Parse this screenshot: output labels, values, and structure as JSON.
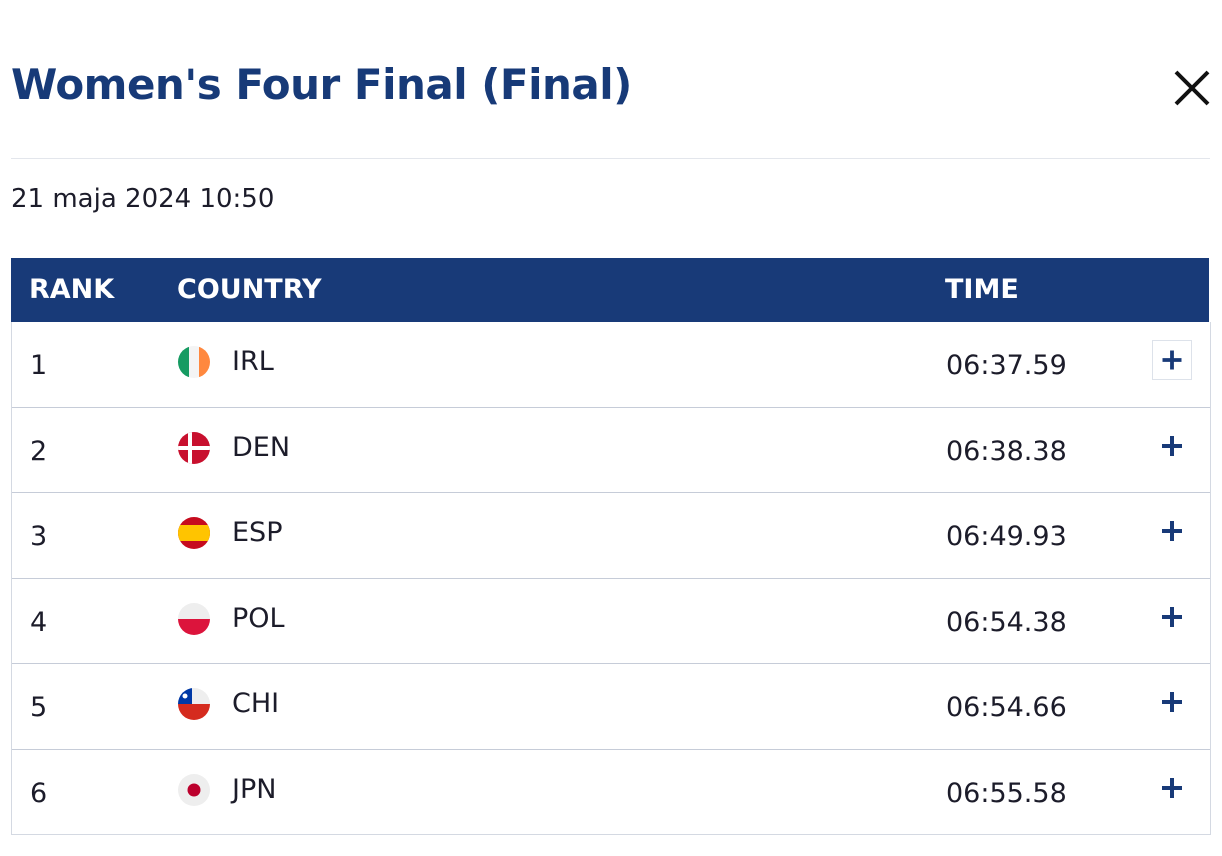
{
  "header": {
    "title": "Women's Four Final (Final)",
    "date": "21 maja 2024 10:50"
  },
  "table": {
    "columns": [
      "RANK",
      "COUNTRY",
      "TIME"
    ],
    "rows": [
      [
        "1",
        "IRL",
        "06:37.59"
      ],
      [
        "2",
        "DEN",
        "06:38.38"
      ],
      [
        "3",
        "ESP",
        "06:49.93"
      ],
      [
        "4",
        "POL",
        "06:54.38"
      ],
      [
        "5",
        "CHI",
        "06:54.66"
      ],
      [
        "6",
        "JPN",
        "06:55.58"
      ]
    ]
  }
}
